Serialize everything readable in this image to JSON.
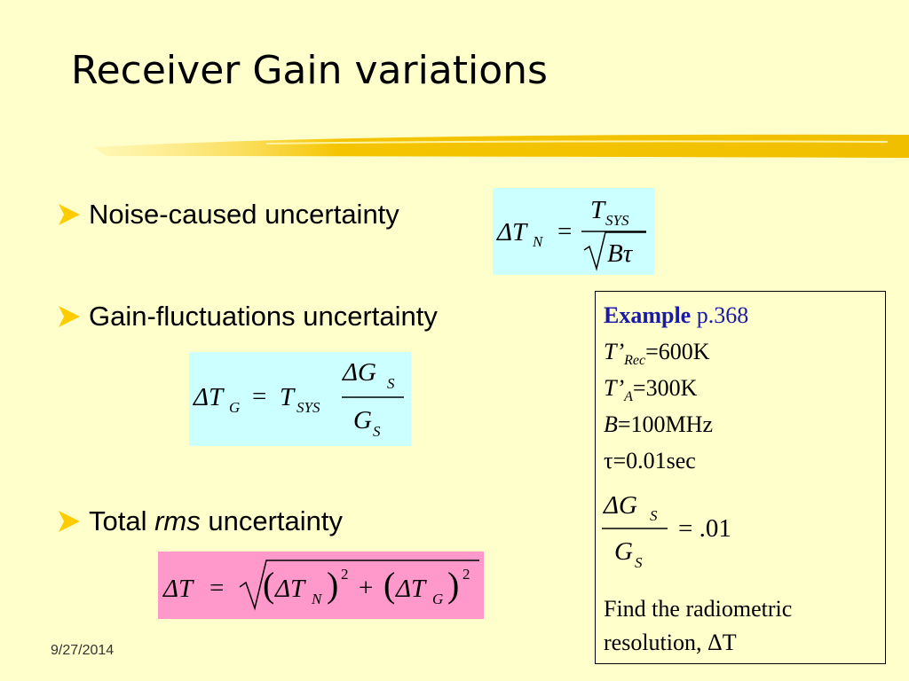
{
  "title": "Receiver Gain variations",
  "bullets": [
    {
      "text": "Noise-caused uncertainty"
    },
    {
      "text": "Gain-fluctuations uncertainty"
    },
    {
      "prefix": "Total",
      "emphasis": "rms",
      "suffix": "uncertainty"
    }
  ],
  "formula_noise": {
    "lhs": "ΔT",
    "lhs_sub": "N",
    "eq": "=",
    "num": "T",
    "num_sub": "SYS",
    "den": "Bτ"
  },
  "formula_gain": {
    "lhs": "ΔT",
    "lhs_sub": "G",
    "eq": "=",
    "factor": "T",
    "factor_sub": "SYS",
    "num": "ΔG",
    "num_sub": "S",
    "den": "G",
    "den_sub": "S"
  },
  "formula_total": {
    "lhs": "ΔT",
    "eq": "=",
    "open": "(",
    "term1": "ΔT",
    "term1_sub": "N",
    "close": ")",
    "exp": "2",
    "plus": "+",
    "term2": "ΔT",
    "term2_sub": "G"
  },
  "example": {
    "heading": "Example",
    "page": "p.368",
    "lines": [
      {
        "var": "T’",
        "sub": "Rec",
        "value": "=600K"
      },
      {
        "var": "T’",
        "sub": "A",
        "value": "=300K"
      },
      {
        "var": "B",
        "value": "=100MHz"
      },
      {
        "text": "τ=0.01sec"
      }
    ],
    "fraction": {
      "num": "ΔG",
      "num_sub": "S",
      "den": "G",
      "den_sub": "S",
      "rhs": "= .01"
    },
    "task": "Find the radiometric resolution, ΔT"
  },
  "date": "9/27/2014"
}
